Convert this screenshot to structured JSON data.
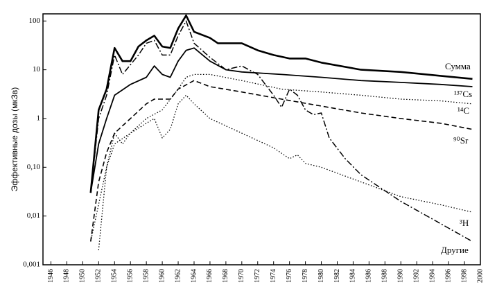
{
  "chart_data": {
    "type": "line",
    "y_label": "Эффективные дозы (мкЗв)",
    "log_y": true,
    "xlim": [
      1945,
      2000
    ],
    "xticks": [
      1946,
      1948,
      1950,
      1952,
      1954,
      1956,
      1958,
      1960,
      1962,
      1964,
      1966,
      1968,
      1970,
      1972,
      1974,
      1976,
      1978,
      1980,
      1982,
      1984,
      1986,
      1988,
      1990,
      1992,
      1994,
      1996,
      1998,
      2000
    ],
    "ylim": [
      0.001,
      140
    ],
    "yticks": [
      {
        "value": 0.001,
        "label": "0,001"
      },
      {
        "value": 0.01,
        "label": "0,01"
      },
      {
        "value": 0.1,
        "label": "0,10"
      },
      1,
      10,
      100
    ],
    "series": [
      {
        "name": "Сумма",
        "color": "#000000",
        "style": "thick",
        "x": [
          1951,
          1952,
          1953,
          1954,
          1955,
          1956,
          1957,
          1958,
          1959,
          1960,
          1961,
          1962,
          1963,
          1964,
          1966,
          1967,
          1970,
          1972,
          1974,
          1976,
          1978,
          1980,
          1985,
          1990,
          1995,
          1999
        ],
        "values": [
          0.03,
          1.5,
          4,
          28,
          15,
          15,
          30,
          40,
          50,
          30,
          28,
          70,
          130,
          60,
          45,
          35,
          35,
          25,
          20,
          17,
          17,
          14,
          10,
          9,
          7.5,
          6.5
        ]
      },
      {
        "name": "¹³⁷Cs",
        "color": "#000000",
        "style": "solid",
        "x": [
          1951,
          1952,
          1953,
          1954,
          1956,
          1958,
          1959,
          1960,
          1961,
          1962,
          1963,
          1964,
          1966,
          1968,
          1970,
          1975,
          1980,
          1985,
          1990,
          1995,
          1999
        ],
        "values": [
          0.03,
          0.3,
          1,
          3,
          5,
          7,
          12,
          8,
          7,
          15,
          25,
          28,
          15,
          10,
          9,
          8,
          7,
          6,
          5.5,
          5,
          4.5
        ]
      },
      {
        "name": "¹⁴C",
        "color": "#000000",
        "style": "dotted",
        "x": [
          1952,
          1953,
          1954,
          1956,
          1958,
          1960,
          1962,
          1963,
          1964,
          1966,
          1970,
          1975,
          1980,
          1985,
          1990,
          1995,
          1999
        ],
        "values": [
          0.002,
          0.1,
          0.3,
          0.5,
          1,
          1.5,
          4,
          7,
          8,
          8,
          6,
          4,
          3.5,
          3,
          2.5,
          2.3,
          2
        ]
      },
      {
        "name": "⁹⁰Sr",
        "color": "#000000",
        "style": "dashed",
        "x": [
          1951,
          1952,
          1953,
          1954,
          1956,
          1958,
          1959,
          1961,
          1962,
          1964,
          1966,
          1970,
          1975,
          1980,
          1985,
          1990,
          1995,
          1999
        ],
        "values": [
          0.003,
          0.05,
          0.2,
          0.5,
          1,
          2,
          2.5,
          2.5,
          4,
          6,
          4.5,
          3.5,
          2.5,
          1.8,
          1.3,
          1,
          0.8,
          0.6
        ]
      },
      {
        "name": "³H",
        "color": "#000000",
        "style": "dashdot",
        "x": [
          1951,
          1952,
          1953,
          1954,
          1955,
          1957,
          1958,
          1959,
          1960,
          1961,
          1962,
          1963,
          1964,
          1966,
          1968,
          1970,
          1972,
          1974,
          1975,
          1976,
          1977,
          1978,
          1979,
          1980,
          1981,
          1983,
          1985,
          1990,
          1995,
          1999
        ],
        "values": [
          0.03,
          1,
          3,
          20,
          8,
          20,
          35,
          40,
          20,
          20,
          50,
          100,
          35,
          18,
          10,
          12,
          8,
          3,
          1.7,
          4,
          3,
          1.5,
          1.2,
          1.3,
          0.4,
          0.15,
          0.07,
          0.02,
          0.007,
          0.003
        ]
      },
      {
        "name": "Другие",
        "color": "#000000",
        "style": "dotted",
        "x": [
          1951,
          1953,
          1954,
          1955,
          1956,
          1958,
          1959,
          1960,
          1961,
          1962,
          1963,
          1964,
          1966,
          1970,
          1974,
          1976,
          1977,
          1978,
          1980,
          1985,
          1990,
          1995,
          1999
        ],
        "values": [
          0.003,
          0.1,
          0.5,
          0.3,
          0.5,
          0.8,
          1,
          0.4,
          0.6,
          2,
          3,
          2,
          1,
          0.5,
          0.25,
          0.15,
          0.18,
          0.12,
          0.1,
          0.05,
          0.025,
          0.017,
          0.012
        ]
      }
    ]
  }
}
